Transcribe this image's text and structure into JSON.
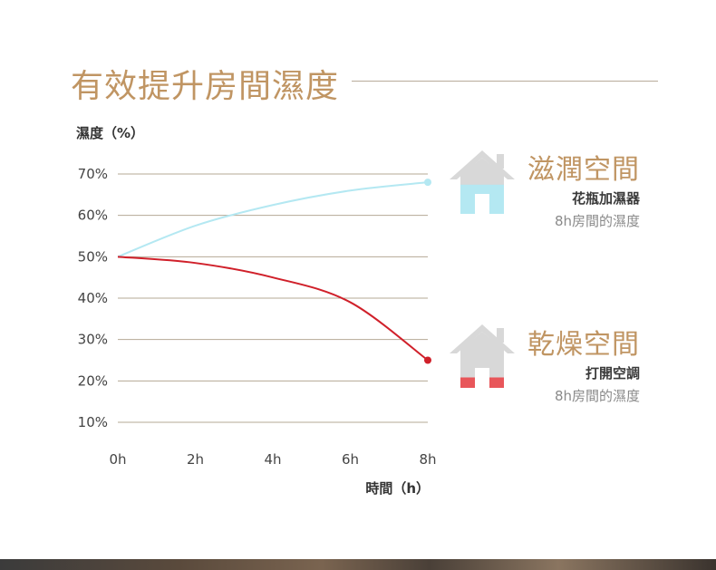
{
  "title": "有效提升房間濕度",
  "chart_data": {
    "type": "line",
    "ylabel": "濕度（%）",
    "xlabel": "時間（h）",
    "x": [
      0,
      2,
      4,
      6,
      8
    ],
    "x_tick_labels": [
      "0h",
      "2h",
      "4h",
      "6h",
      "8h"
    ],
    "y_ticks": [
      10,
      20,
      30,
      40,
      50,
      60,
      70
    ],
    "y_tick_labels": [
      "10%",
      "20%",
      "30%",
      "40%",
      "50%",
      "60%",
      "70%"
    ],
    "ylim": [
      10,
      70
    ],
    "xlim": [
      0,
      8
    ],
    "grid": true,
    "series": [
      {
        "name": "滋潤空間",
        "color": "#b4e8f2",
        "x": [
          0,
          2,
          4,
          6,
          8
        ],
        "values": [
          50,
          57.5,
          62.5,
          66,
          68
        ]
      },
      {
        "name": "乾燥空間",
        "color": "#d0202a",
        "x": [
          0,
          2,
          4,
          6,
          8
        ],
        "values": [
          50,
          48.5,
          45,
          39,
          25
        ]
      }
    ]
  },
  "legend": [
    {
      "name": "滋潤空間",
      "sub": "花瓶加濕器",
      "sub2": "8h房間的濕度",
      "house_fill": "#b4e8f2",
      "fill_level": 0.7
    },
    {
      "name": "乾燥空間",
      "sub": "打開空調",
      "sub2": "8h房間的濕度",
      "house_fill": "#e8565a",
      "fill_level": 0.25
    }
  ]
}
